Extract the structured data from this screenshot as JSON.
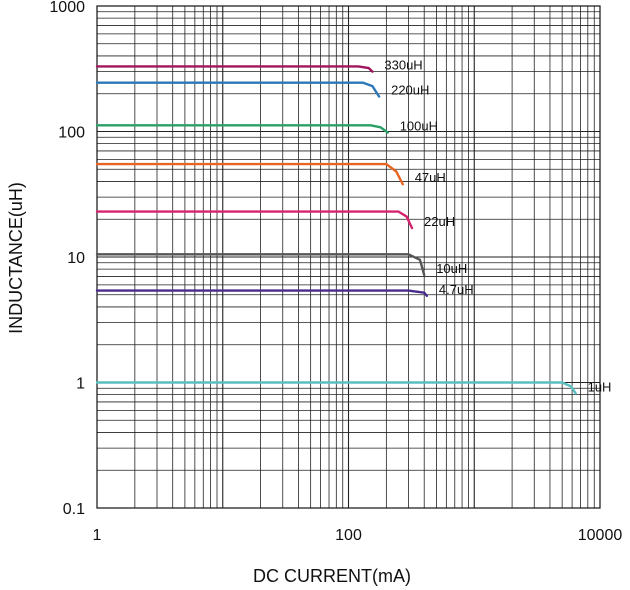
{
  "chart_data": {
    "type": "line",
    "title": "",
    "xlabel": "DC CURRENT(mA)",
    "ylabel": "INDUCTANCE(uH)",
    "x_scale": "log",
    "y_scale": "log",
    "xlim": [
      1,
      10000
    ],
    "ylim": [
      0.1,
      1000
    ],
    "grid": true,
    "legend": "none",
    "x_ticks": [
      {
        "value": 1,
        "label": "1"
      },
      {
        "value": 100,
        "label": "100"
      },
      {
        "value": 10000,
        "label": "10000"
      }
    ],
    "y_ticks": [
      {
        "value": 0.1,
        "label": "0.1"
      },
      {
        "value": 1,
        "label": "1"
      },
      {
        "value": 10,
        "label": "10"
      },
      {
        "value": 100,
        "label": "100"
      },
      {
        "value": 1000,
        "label": "1000"
      }
    ],
    "series": [
      {
        "name": "330uH",
        "color": "#a0165c",
        "x": [
          1,
          120,
          145,
          155
        ],
        "y": [
          330,
          330,
          320,
          300
        ]
      },
      {
        "name": "220uH",
        "color": "#2a78b8",
        "x": [
          1,
          130,
          155,
          175
        ],
        "y": [
          245,
          245,
          230,
          190
        ]
      },
      {
        "name": "100uH",
        "color": "#2aa067",
        "x": [
          1,
          150,
          180,
          205
        ],
        "y": [
          112,
          112,
          108,
          98
        ]
      },
      {
        "name": "47uH",
        "color": "#e86420",
        "x": [
          1,
          200,
          240,
          270
        ],
        "y": [
          55,
          55,
          48,
          38
        ]
      },
      {
        "name": "22uH",
        "color": "#d6246e",
        "x": [
          1,
          250,
          290,
          320
        ],
        "y": [
          23,
          23,
          21,
          17
        ]
      },
      {
        "name": "10uH",
        "color": "#555555",
        "x": [
          1,
          300,
          370,
          400
        ],
        "y": [
          10.5,
          10.5,
          9.5,
          7.2
        ]
      },
      {
        "name": "4.7uH",
        "color": "#4a2b8c",
        "x": [
          1,
          300,
          400,
          420
        ],
        "y": [
          5.4,
          5.4,
          5.2,
          4.9
        ]
      },
      {
        "name": "1uH",
        "color": "#5abfc0",
        "x": [
          1,
          5000,
          5900,
          6400
        ],
        "y": [
          1.0,
          1.0,
          0.93,
          0.82
        ]
      }
    ]
  }
}
